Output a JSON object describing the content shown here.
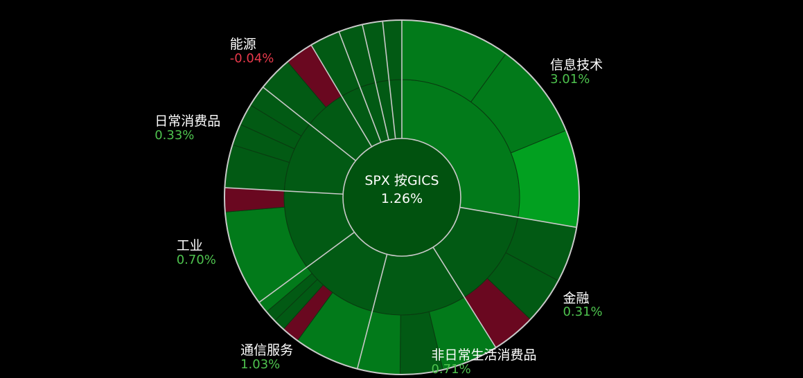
{
  "chart_data": {
    "type": "sunburst",
    "title": "SPX 按GICS",
    "value": "1.26%",
    "colors": {
      "positive_strong": "#02a020",
      "positive": "#027a1a",
      "positive_dim": "#025a14",
      "negative": "#6a0820",
      "center": "#01520f",
      "border": "#c9c9c9"
    },
    "sectors": [
      {
        "name": "信息技术",
        "change": "3.01%",
        "direction": "up",
        "span": 0.24,
        "children": [
          {
            "share": 0.36,
            "shade": "positive"
          },
          {
            "share": 0.32,
            "shade": "positive"
          },
          {
            "share": 0.32,
            "shade": "positive_strong"
          }
        ]
      },
      {
        "name": "金融",
        "change": "0.31%",
        "direction": "up",
        "span": 0.116,
        "children": [
          {
            "share": 0.38,
            "shade": "positive_dim"
          },
          {
            "share": 0.32,
            "shade": "positive_dim"
          },
          {
            "share": 0.3,
            "shade": "negative"
          }
        ]
      },
      {
        "name": "非日常生活消费品",
        "change": "0.71%",
        "direction": "up",
        "span": 0.112,
        "children": [
          {
            "share": 0.4,
            "shade": "positive"
          },
          {
            "share": 0.3,
            "shade": "positive_dim"
          },
          {
            "share": 0.3,
            "shade": "positive"
          }
        ]
      },
      {
        "name": "通信服务",
        "change": "1.03%",
        "direction": "up",
        "span": 0.094,
        "children": [
          {
            "share": 0.55,
            "shade": "positive"
          },
          {
            "share": 0.15,
            "shade": "negative"
          },
          {
            "share": 0.1,
            "shade": "positive_dim"
          },
          {
            "share": 0.1,
            "shade": "positive_dim"
          },
          {
            "share": 0.1,
            "shade": "positive"
          }
        ]
      },
      {
        "name": "工业",
        "change": "0.70%",
        "direction": "up",
        "span": 0.095,
        "children": [
          {
            "share": 0.8,
            "shade": "positive"
          },
          {
            "share": 0.2,
            "shade": "negative"
          }
        ]
      },
      {
        "name": "日常消费品",
        "change": "0.33%",
        "direction": "up",
        "span": 0.085,
        "children": [
          {
            "share": 0.4,
            "shade": "positive_dim"
          },
          {
            "share": 0.2,
            "shade": "positive_dim"
          },
          {
            "share": 0.2,
            "shade": "positive_dim"
          },
          {
            "share": 0.2,
            "shade": "positive_dim"
          }
        ]
      },
      {
        "name": "能源",
        "change": "-0.04%",
        "direction": "down",
        "span": 0.05,
        "children": [
          {
            "share": 0.55,
            "shade": "positive_dim"
          },
          {
            "share": 0.45,
            "shade": "negative"
          }
        ]
      },
      {
        "name": "",
        "change": "",
        "direction": "up",
        "span": 0.024,
        "children": [
          {
            "share": 1.0,
            "shade": "positive_dim"
          }
        ]
      },
      {
        "name": "",
        "change": "",
        "direction": "up",
        "span": 0.019,
        "children": [
          {
            "share": 1.0,
            "shade": "positive_dim"
          }
        ]
      },
      {
        "name": "",
        "change": "",
        "direction": "up",
        "span": 0.016,
        "children": [
          {
            "share": 1.0,
            "shade": "positive_dim"
          }
        ]
      },
      {
        "name": "",
        "change": "",
        "direction": "up",
        "span": 0.015,
        "children": [
          {
            "share": 1.0,
            "shade": "positive_dim"
          }
        ]
      }
    ],
    "label_colors": {
      "up": "#4ec24e",
      "down": "#e8394b"
    }
  }
}
